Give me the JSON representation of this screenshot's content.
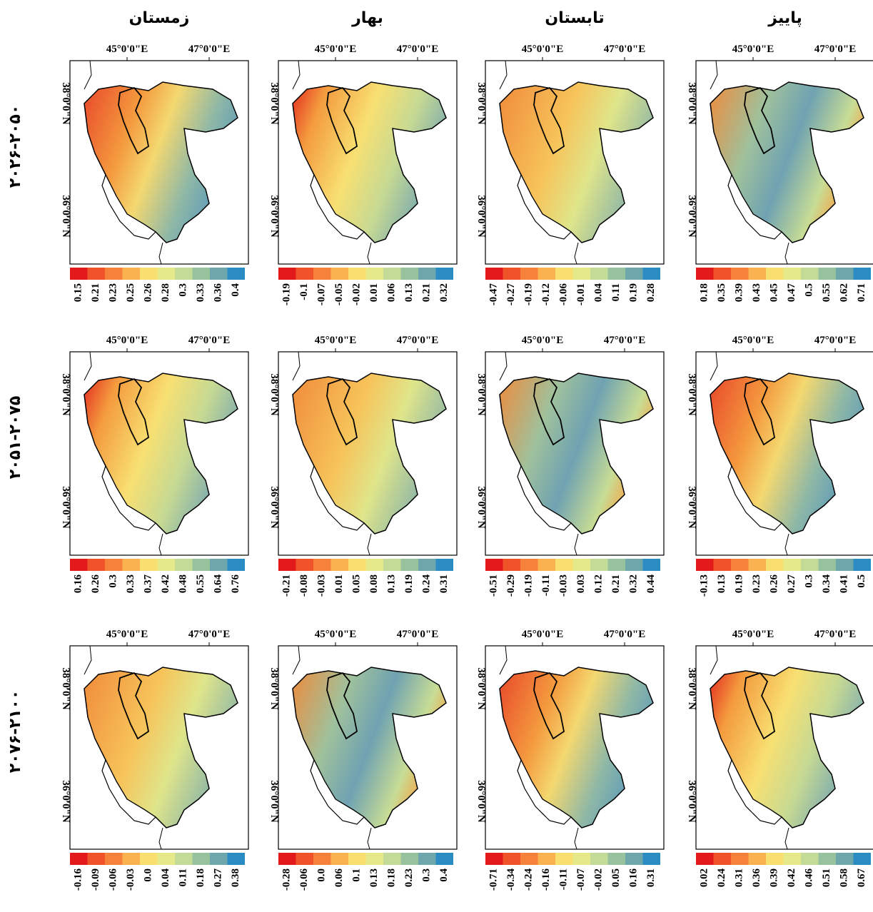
{
  "columns": [
    "زمستان",
    "بهار",
    "تابستان",
    "پاییز"
  ],
  "rows": [
    "۲۰۲۶-۲۰۵۰",
    "۲۰۵۱-۲۰۷۵",
    "۲۰۷۶-۲۱۰۰"
  ],
  "axis_labels": {
    "lon": [
      "45°0'0\"E",
      "47°0'0\"E"
    ],
    "lat": [
      "38°0'0\"N",
      "36°0'0\"N"
    ]
  },
  "panels": [
    [
      {
        "legend": [
          "0.15",
          "0.21",
          "0.23",
          "0.25",
          "0.26",
          "0.28",
          "0.3",
          "0.33",
          "0.36",
          "0.4"
        ]
      },
      {
        "legend": [
          "-0.19",
          "-0.1",
          "-0.07",
          "-0.05",
          "-0.02",
          "0.01",
          "0.06",
          "0.13",
          "0.21",
          "0.32"
        ]
      },
      {
        "legend": [
          "-0.47",
          "-0.27",
          "-0.19",
          "-0.12",
          "-0.06",
          "-0.01",
          "0.04",
          "0.11",
          "0.19",
          "0.28"
        ]
      },
      {
        "legend": [
          "0.18",
          "0.35",
          "0.39",
          "0.43",
          "0.45",
          "0.47",
          "0.5",
          "0.55",
          "0.62",
          "0.71"
        ]
      }
    ],
    [
      {
        "legend": [
          "0.16",
          "0.26",
          "0.3",
          "0.33",
          "0.37",
          "0.42",
          "0.48",
          "0.55",
          "0.64",
          "0.76"
        ]
      },
      {
        "legend": [
          "-0.21",
          "-0.08",
          "-0.03",
          "0.01",
          "0.05",
          "0.08",
          "0.13",
          "0.19",
          "0.24",
          "0.31"
        ]
      },
      {
        "legend": [
          "-0.51",
          "-0.29",
          "-0.19",
          "-0.11",
          "-0.03",
          "0.03",
          "0.12",
          "0.21",
          "0.32",
          "0.44"
        ]
      },
      {
        "legend": [
          "-0.13",
          "0.13",
          "0.19",
          "0.23",
          "0.26",
          "0.27",
          "0.3",
          "0.34",
          "0.41",
          "0.5"
        ]
      }
    ],
    [
      {
        "legend": [
          "-0.16",
          "-0.09",
          "-0.06",
          "-0.03",
          "0.0",
          "0.04",
          "0.11",
          "0.18",
          "0.27",
          "0.38"
        ]
      },
      {
        "legend": [
          "-0.28",
          "-0.06",
          "0.0",
          "0.06",
          "0.1",
          "0.13",
          "0.18",
          "0.23",
          "0.3",
          "0.4"
        ]
      },
      {
        "legend": [
          "-0.71",
          "-0.34",
          "-0.24",
          "-0.16",
          "-0.11",
          "-0.07",
          "-0.02",
          "0.05",
          "0.16",
          "0.31"
        ]
      },
      {
        "legend": [
          "0.02",
          "0.24",
          "0.31",
          "0.36",
          "0.39",
          "0.42",
          "0.46",
          "0.51",
          "0.58",
          "0.67"
        ]
      }
    ]
  ]
}
